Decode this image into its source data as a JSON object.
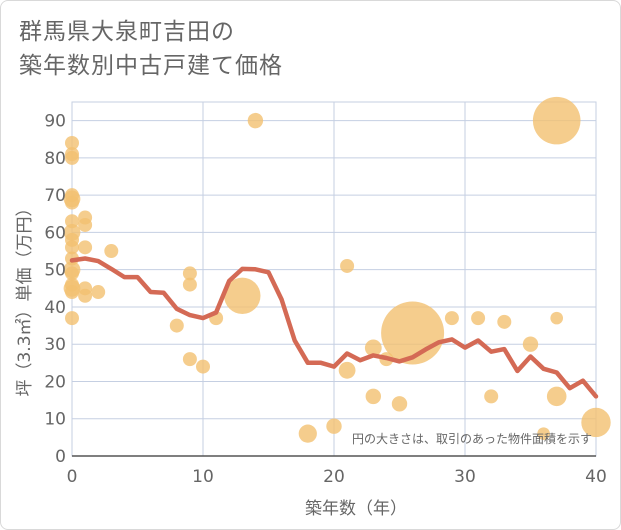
{
  "title_line1": "群馬県大泉町吉田の",
  "title_line2": "築年数別中古戸建て価格",
  "chart_data": {
    "type": "scatter",
    "title": "群馬県大泉町吉田の築年数別中古戸建て価格",
    "xlabel": "築年数（年）",
    "ylabel": "坪（3.3㎡）単価（万円）",
    "xlim": [
      0,
      40
    ],
    "ylim": [
      0,
      95
    ],
    "xticks": [
      0,
      10,
      20,
      30,
      40
    ],
    "yticks": [
      0,
      10,
      20,
      30,
      40,
      50,
      60,
      70,
      80,
      90
    ],
    "grid": true,
    "annotation": "円の大きさは、取引のあった物件面積を示す",
    "colors": {
      "bubble": "#f2c170",
      "line": "#d46a55",
      "grid": "#c5cfe2",
      "text": "#666666"
    },
    "bubbles": [
      {
        "x": 0,
        "y": 84,
        "size": 1.0
      },
      {
        "x": 0,
        "y": 81,
        "size": 1.0
      },
      {
        "x": 0,
        "y": 80,
        "size": 1.0
      },
      {
        "x": 0,
        "y": 70,
        "size": 1.0
      },
      {
        "x": 0,
        "y": 69,
        "size": 1.2
      },
      {
        "x": 0,
        "y": 68,
        "size": 1.0
      },
      {
        "x": 0,
        "y": 63,
        "size": 1.0
      },
      {
        "x": 0,
        "y": 60,
        "size": 1.2
      },
      {
        "x": 0,
        "y": 58,
        "size": 1.0
      },
      {
        "x": 0,
        "y": 56,
        "size": 1.0
      },
      {
        "x": 0,
        "y": 53,
        "size": 1.0
      },
      {
        "x": 0,
        "y": 50,
        "size": 1.2
      },
      {
        "x": 0,
        "y": 49,
        "size": 1.0
      },
      {
        "x": 0,
        "y": 46,
        "size": 1.0
      },
      {
        "x": 0,
        "y": 45,
        "size": 1.2
      },
      {
        "x": 0,
        "y": 44,
        "size": 1.0
      },
      {
        "x": 0,
        "y": 37,
        "size": 1.0
      },
      {
        "x": 1,
        "y": 64,
        "size": 1.0
      },
      {
        "x": 1,
        "y": 62,
        "size": 1.0
      },
      {
        "x": 1,
        "y": 56,
        "size": 1.0
      },
      {
        "x": 1,
        "y": 45,
        "size": 1.0
      },
      {
        "x": 1,
        "y": 43,
        "size": 1.0
      },
      {
        "x": 2,
        "y": 44,
        "size": 1.0
      },
      {
        "x": 3,
        "y": 55,
        "size": 1.0
      },
      {
        "x": 8,
        "y": 35,
        "size": 1.0
      },
      {
        "x": 9,
        "y": 49,
        "size": 1.0
      },
      {
        "x": 9,
        "y": 46,
        "size": 1.0
      },
      {
        "x": 9,
        "y": 26,
        "size": 1.0
      },
      {
        "x": 10,
        "y": 24,
        "size": 1.0
      },
      {
        "x": 11,
        "y": 37,
        "size": 1.0
      },
      {
        "x": 13,
        "y": 43,
        "size": 2.6
      },
      {
        "x": 14,
        "y": 90,
        "size": 1.1
      },
      {
        "x": 18,
        "y": 6,
        "size": 1.3
      },
      {
        "x": 20,
        "y": 8,
        "size": 1.1
      },
      {
        "x": 21,
        "y": 51,
        "size": 1.0
      },
      {
        "x": 21,
        "y": 23,
        "size": 1.2
      },
      {
        "x": 23,
        "y": 29,
        "size": 1.2
      },
      {
        "x": 23,
        "y": 16,
        "size": 1.1
      },
      {
        "x": 24,
        "y": 26,
        "size": 1.0
      },
      {
        "x": 25,
        "y": 14,
        "size": 1.1
      },
      {
        "x": 26,
        "y": 33,
        "size": 4.5
      },
      {
        "x": 29,
        "y": 37,
        "size": 1.0
      },
      {
        "x": 31,
        "y": 37,
        "size": 1.0
      },
      {
        "x": 32,
        "y": 16,
        "size": 1.0
      },
      {
        "x": 33,
        "y": 36,
        "size": 1.0
      },
      {
        "x": 35,
        "y": 30,
        "size": 1.1
      },
      {
        "x": 36,
        "y": 6,
        "size": 0.9
      },
      {
        "x": 37,
        "y": 90,
        "size": 3.4
      },
      {
        "x": 37,
        "y": 37,
        "size": 0.9
      },
      {
        "x": 37,
        "y": 16,
        "size": 1.4
      },
      {
        "x": 40,
        "y": 9,
        "size": 2.1
      }
    ],
    "line": {
      "x": [
        0,
        1,
        2,
        3,
        4,
        5,
        6,
        7,
        8,
        9,
        10,
        11,
        12,
        13,
        14,
        15,
        16,
        17,
        18,
        19,
        20,
        21,
        22,
        23,
        24,
        25,
        26,
        27,
        28,
        29,
        30,
        31,
        32,
        33,
        34,
        35,
        36,
        37,
        38,
        39,
        40
      ],
      "y": [
        52.5,
        53,
        52.3,
        50.2,
        48,
        48,
        44,
        43.8,
        39.5,
        37.8,
        37,
        38.5,
        47,
        50.2,
        50.1,
        49.3,
        42,
        31,
        25,
        25,
        24,
        27.5,
        25.7,
        27,
        26.3,
        25.4,
        26.5,
        28.6,
        30.5,
        31.3,
        29.1,
        31,
        28,
        28.7,
        22.8,
        26.7,
        23.4,
        22.4,
        18.2,
        20.2,
        16
      ]
    }
  }
}
